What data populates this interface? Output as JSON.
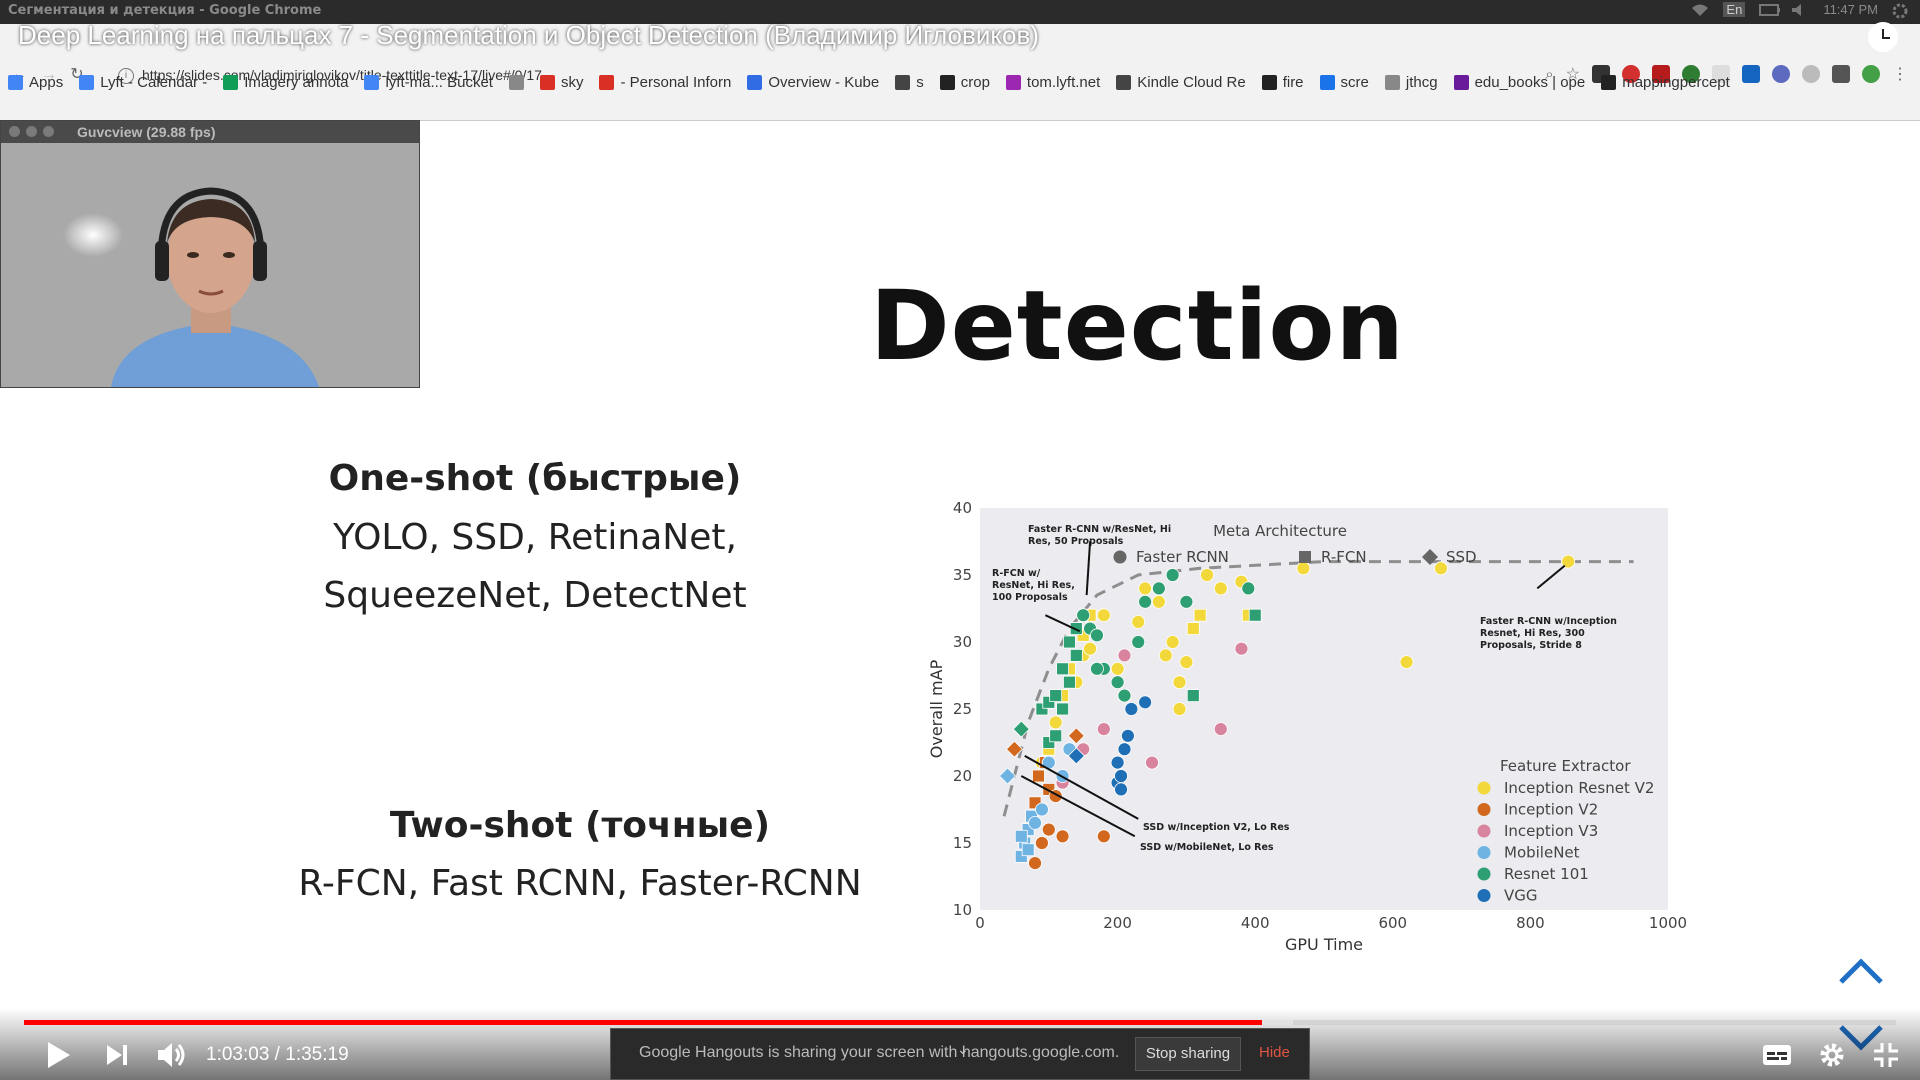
{
  "os_bar": {
    "window_title": "Сегментация и детекция - Google Chrome",
    "tray_lang": "En",
    "tray_time": "11:47 PM"
  },
  "browser": {
    "url": "https://slides.com/vladimiriglovikov/title-texttitle-text-17/live#/0/17",
    "bookmarks": [
      {
        "label": "Apps",
        "icon": "apps-grid-icon",
        "color": "#4285f4"
      },
      {
        "label": "Lyft - Calendar -",
        "icon": "calendar-icon",
        "color": "#4285f4"
      },
      {
        "label": "Imagery annota",
        "icon": "drive-icon",
        "color": "#0f9d58"
      },
      {
        "label": "lyft-ma... Bucket",
        "icon": "bucket-icon",
        "color": "#4285f4"
      },
      {
        "label": "",
        "icon": "page-icon",
        "color": "#888888"
      },
      {
        "label": "sky",
        "icon": "pin-icon",
        "color": "#d93025"
      },
      {
        "label": "- Personal Inforn",
        "icon": "personal-icon",
        "color": "#d93025"
      },
      {
        "label": "Overview - Kube",
        "icon": "kube-icon",
        "color": "#326ce5"
      },
      {
        "label": "s",
        "icon": "s-icon",
        "color": "#444444"
      },
      {
        "label": "crop",
        "icon": "github-icon",
        "color": "#222222"
      },
      {
        "label": "tom.lyft.net",
        "icon": "t-icon",
        "color": "#9c27b0"
      },
      {
        "label": "Kindle Cloud Re",
        "icon": "kindle-icon",
        "color": "#444444"
      },
      {
        "label": "fire",
        "icon": "l-icon",
        "color": "#222222"
      },
      {
        "label": "scre",
        "icon": "diamond-icon",
        "color": "#1a73e8"
      },
      {
        "label": "jthcg",
        "icon": "page-icon",
        "color": "#888888"
      },
      {
        "label": "edu_books | ope",
        "icon": "books-icon",
        "color": "#6a1b9a"
      },
      {
        "label": "mappingpercept",
        "icon": "github-icon",
        "color": "#222222"
      }
    ]
  },
  "video": {
    "title": "Deep Learning на пальцах 7 - Segmentation и Object Detection (Владимир Игловиков)"
  },
  "webcam": {
    "title": "Guvcview  (29.88 fps)"
  },
  "slide": {
    "title": "Detection",
    "one_shot_heading": "One-shot (быстрые)",
    "one_shot_line1": "YOLO, SSD, RetinaNet,",
    "one_shot_line2": "SqueezeNet, DetectNet",
    "two_shot_heading": "Two-shot (точные)",
    "two_shot_line1": "R-FCN, Fast RCNN, Faster-RCNN"
  },
  "chart_data": {
    "type": "scatter",
    "xlabel": "GPU Time",
    "ylabel": "Overall mAP",
    "xlim": [
      0,
      1000
    ],
    "ylim": [
      10,
      40
    ],
    "xticks": [
      0,
      200,
      400,
      600,
      800,
      1000
    ],
    "yticks": [
      10,
      15,
      20,
      25,
      30,
      35,
      40
    ],
    "meta_legend_title": "Meta Architecture",
    "meta_architectures": [
      {
        "name": "Faster RCNN",
        "marker": "circle"
      },
      {
        "name": "R-FCN",
        "marker": "square"
      },
      {
        "name": "SSD",
        "marker": "diamond"
      }
    ],
    "feature_legend_title": "Feature Extractor",
    "series": [
      {
        "name": "Inception Resnet V2",
        "color": "#f2d83b",
        "points": [
          [
            140,
            31,
            "s"
          ],
          [
            150,
            30.5,
            "s"
          ],
          [
            160,
            32,
            "s"
          ],
          [
            180,
            32,
            "c"
          ],
          [
            200,
            28,
            "c"
          ],
          [
            230,
            31.5,
            "c"
          ],
          [
            240,
            34,
            "c"
          ],
          [
            260,
            33,
            "c"
          ],
          [
            270,
            29,
            "c"
          ],
          [
            280,
            30,
            "c"
          ],
          [
            290,
            27,
            "c"
          ],
          [
            300,
            28.5,
            "c"
          ],
          [
            320,
            32,
            "s"
          ],
          [
            330,
            35,
            "c"
          ],
          [
            350,
            34,
            "c"
          ],
          [
            380,
            34.5,
            "c"
          ],
          [
            390,
            32,
            "s"
          ],
          [
            470,
            35.5,
            "c"
          ],
          [
            620,
            28.5,
            "c"
          ],
          [
            670,
            35.5,
            "c"
          ],
          [
            855,
            36,
            "c"
          ],
          [
            130,
            28,
            "s"
          ],
          [
            120,
            26,
            "s"
          ],
          [
            110,
            24,
            "c"
          ],
          [
            100,
            22,
            "s"
          ],
          [
            90,
            21,
            "c"
          ],
          [
            140,
            27,
            "c"
          ],
          [
            150,
            29,
            "c"
          ],
          [
            160,
            29.5,
            "c"
          ],
          [
            310,
            31,
            "s"
          ],
          [
            290,
            25,
            "c"
          ]
        ]
      },
      {
        "name": "Inception V2",
        "color": "#d2681e",
        "points": [
          [
            50,
            22,
            "d"
          ],
          [
            80,
            13.5,
            "c"
          ],
          [
            90,
            15,
            "c"
          ],
          [
            100,
            16,
            "c"
          ],
          [
            120,
            15.5,
            "c"
          ],
          [
            180,
            15.5,
            "c"
          ],
          [
            85,
            20,
            "s"
          ],
          [
            95,
            21,
            "s"
          ],
          [
            100,
            19,
            "s"
          ],
          [
            140,
            23,
            "d"
          ],
          [
            80,
            18,
            "s"
          ],
          [
            110,
            18.5,
            "c"
          ]
        ]
      },
      {
        "name": "Inception V3",
        "color": "#d9849f",
        "points": [
          [
            180,
            23.5,
            "c"
          ],
          [
            210,
            29,
            "c"
          ],
          [
            250,
            21,
            "c"
          ],
          [
            350,
            23.5,
            "c"
          ],
          [
            380,
            29.5,
            "c"
          ],
          [
            120,
            19.5,
            "c"
          ],
          [
            150,
            22,
            "c"
          ]
        ]
      },
      {
        "name": "MobileNet",
        "color": "#6fb3e3",
        "points": [
          [
            40,
            20,
            "d"
          ],
          [
            60,
            14,
            "s"
          ],
          [
            65,
            15,
            "s"
          ],
          [
            70,
            16,
            "s"
          ],
          [
            75,
            17,
            "s"
          ],
          [
            80,
            16.5,
            "c"
          ],
          [
            90,
            17.5,
            "c"
          ],
          [
            60,
            15.5,
            "s"
          ],
          [
            70,
            14.5,
            "s"
          ],
          [
            120,
            20,
            "c"
          ],
          [
            130,
            22,
            "c"
          ],
          [
            100,
            21,
            "c"
          ]
        ]
      },
      {
        "name": "Resnet 101",
        "color": "#2e9e73",
        "points": [
          [
            60,
            23.5,
            "d"
          ],
          [
            90,
            25,
            "s"
          ],
          [
            100,
            25.5,
            "s"
          ],
          [
            110,
            26,
            "s"
          ],
          [
            120,
            28,
            "s"
          ],
          [
            130,
            30,
            "s"
          ],
          [
            140,
            31,
            "s"
          ],
          [
            150,
            32,
            "c"
          ],
          [
            160,
            31,
            "c"
          ],
          [
            170,
            30.5,
            "c"
          ],
          [
            180,
            28,
            "c"
          ],
          [
            200,
            27,
            "c"
          ],
          [
            210,
            26,
            "c"
          ],
          [
            230,
            30,
            "c"
          ],
          [
            240,
            33,
            "c"
          ],
          [
            260,
            34,
            "c"
          ],
          [
            280,
            35,
            "c"
          ],
          [
            300,
            33,
            "c"
          ],
          [
            310,
            26,
            "s"
          ],
          [
            390,
            34,
            "c"
          ],
          [
            400,
            32,
            "s"
          ],
          [
            100,
            22.5,
            "s"
          ],
          [
            110,
            23,
            "s"
          ],
          [
            120,
            25,
            "s"
          ],
          [
            130,
            27,
            "s"
          ],
          [
            140,
            29,
            "s"
          ],
          [
            170,
            28,
            "c"
          ]
        ]
      },
      {
        "name": "VGG",
        "color": "#1f6fb6",
        "points": [
          [
            140,
            21.5,
            "d"
          ],
          [
            200,
            19.5,
            "c"
          ],
          [
            205,
            20,
            "c"
          ],
          [
            210,
            22,
            "c"
          ],
          [
            215,
            23,
            "c"
          ],
          [
            220,
            25,
            "c"
          ],
          [
            240,
            25.5,
            "c"
          ],
          [
            200,
            21,
            "c"
          ],
          [
            205,
            19,
            "c"
          ]
        ]
      }
    ],
    "frontier": [
      [
        35,
        17
      ],
      [
        50,
        20
      ],
      [
        70,
        24
      ],
      [
        100,
        28
      ],
      [
        130,
        31
      ],
      [
        170,
        33.5
      ],
      [
        230,
        35
      ],
      [
        320,
        35.5
      ],
      [
        500,
        36
      ],
      [
        700,
        36
      ],
      [
        950,
        36
      ]
    ],
    "annotations": [
      {
        "text": [
          "Faster R-CNN w/ResNet, Hi",
          "Res, 50 Proposals"
        ]
      },
      {
        "text": [
          "R-FCN w/",
          "ResNet, Hi Res,",
          "100 Proposals"
        ]
      },
      {
        "text": [
          "Faster R-CNN w/Inception",
          "Resnet, Hi Res, 300",
          "Proposals, Stride 8"
        ]
      },
      {
        "text": [
          "SSD w/Inception V2, Lo Res"
        ]
      },
      {
        "text": [
          "SSD w/MobileNet, Lo Res"
        ]
      }
    ]
  },
  "player": {
    "time_current": "1:03:03",
    "time_separator": " / ",
    "time_total": "1:35:19",
    "progress_fraction": 0.6615,
    "buffer_fraction": 0.678,
    "hangouts_message": "Google Hangouts is sharing your screen with hangouts.google.com.",
    "stop_sharing_label": "Stop sharing",
    "hide_label": "Hide"
  },
  "colors": {
    "progress": "#ff0000",
    "hide_link": "#e05545",
    "chart_bg": "#ebebf0"
  }
}
